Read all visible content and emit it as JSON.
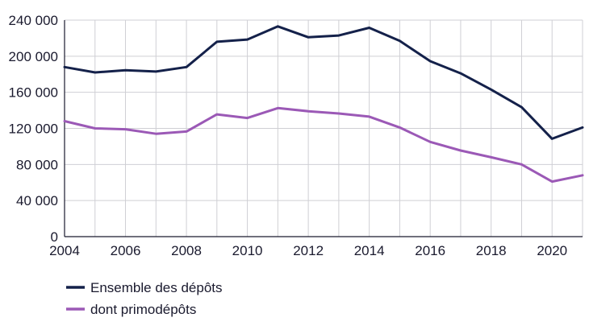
{
  "chart_data": {
    "type": "line",
    "title": "",
    "xlabel": "",
    "ylabel": "",
    "x": [
      2004,
      2005,
      2006,
      2007,
      2008,
      2009,
      2010,
      2011,
      2012,
      2013,
      2014,
      2015,
      2016,
      2017,
      2018,
      2019,
      2020,
      2021
    ],
    "xlim": [
      2004,
      2021
    ],
    "ylim": [
      0,
      240000
    ],
    "grid": true,
    "x_ticks": [
      "2004",
      "2006",
      "2008",
      "2010",
      "2012",
      "2014",
      "2016",
      "2018",
      "2020"
    ],
    "y_ticks": [
      "0",
      "40 000",
      "80 000",
      "120 000",
      "160 000",
      "200 000",
      "240 000"
    ],
    "legend_position": "bottom-left",
    "series": [
      {
        "name": "Ensemble des dépôts",
        "color": "#14214a",
        "values": [
          188000,
          182000,
          184500,
          183000,
          188000,
          216000,
          218500,
          233000,
          221000,
          223000,
          231500,
          217000,
          194500,
          181000,
          163000,
          143500,
          108500,
          121000
        ]
      },
      {
        "name": "dont primodépôts",
        "color": "#9b59b6",
        "values": [
          128000,
          120000,
          119000,
          114000,
          116500,
          135500,
          131500,
          142500,
          139000,
          136500,
          133000,
          121000,
          105000,
          95500,
          88000,
          80000,
          61000,
          68000
        ]
      }
    ]
  }
}
